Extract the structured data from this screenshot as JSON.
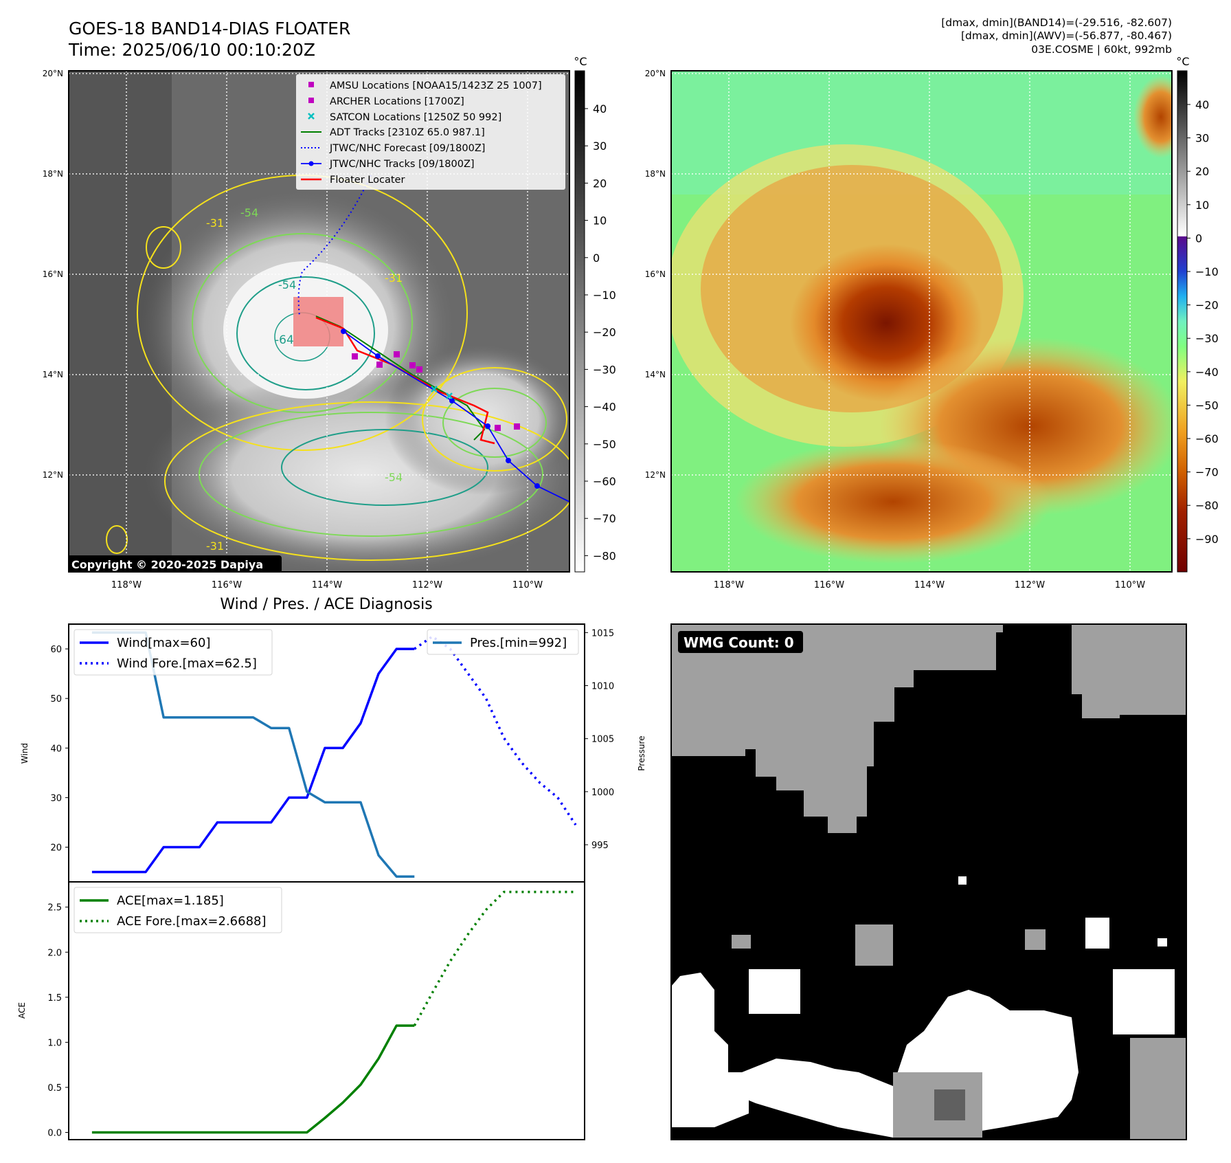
{
  "header": {
    "title_line1": "GOES-18 BAND14-DIAS FLOATER",
    "title_line2": "Time: 2025/06/10 00:10:20Z",
    "info_line1": "[dmax, dmin](BAND14)=(-29.516, -82.607)",
    "info_line2": "[dmax, dmin](AWV)=(-56.877, -80.467)",
    "info_line3": "03E.COSME | 60kt, 992mb"
  },
  "colors": {
    "wind": "#0000ff",
    "pressure": "#1f77b4",
    "ace": "#008000",
    "amsu": "#c000c0",
    "satcon": "#00c0c0",
    "adt": "#008000",
    "floater": "#ff0000",
    "contour_yellow": "#f5e11c",
    "contour_green": "#7ed957",
    "contour_teal": "#1f9e89"
  },
  "maps": {
    "lat_ticks": [
      "20°N",
      "18°N",
      "16°N",
      "14°N",
      "12°N"
    ],
    "lon_ticks": [
      "118°W",
      "116°W",
      "114°W",
      "112°W",
      "110°W"
    ],
    "colorbar_unit": "°C",
    "ir_colorbar_ticks": [
      "40",
      "30",
      "20",
      "10",
      "0",
      "−10",
      "−20",
      "−30",
      "−40",
      "−50",
      "−60",
      "−70",
      "−80"
    ],
    "rgb_colorbar_ticks": [
      "40",
      "30",
      "20",
      "10",
      "0",
      "−10",
      "−20",
      "−30",
      "−40",
      "−50",
      "−60",
      "−70",
      "−80",
      "−90"
    ],
    "contour_labels": [
      "-31",
      "-54",
      "-64",
      "-54",
      "-31",
      "-54",
      "-31"
    ],
    "copyright": "Copyright © 2020-2025 Dapiya",
    "legend": [
      {
        "label": "AMSU Locations [NOAA15/1423Z 25 1007]",
        "icon": "square-marker"
      },
      {
        "label": "ARCHER Locations [1700Z]",
        "icon": "square-marker"
      },
      {
        "label": "SATCON Locations [1250Z 50 992]",
        "icon": "x-marker"
      },
      {
        "label": "ADT Tracks [2310Z 65.0 987.1]",
        "icon": "solid-line"
      },
      {
        "label": "JTWC/NHC Forecast [09/1800Z]",
        "icon": "dotted-line"
      },
      {
        "label": "JTWC/NHC Tracks [09/1800Z]",
        "icon": "line-with-dots"
      },
      {
        "label": "Floater Locater",
        "icon": "solid-line"
      }
    ]
  },
  "wmg": {
    "label": "WMG Count: 0"
  },
  "chart_data": [
    {
      "type": "line",
      "title": "Wind / Pres. / ACE Diagnosis",
      "ylabel": "Wind",
      "y2label": "Pressure",
      "ylim": [
        13,
        65
      ],
      "y2lim": [
        991.5,
        1015.8
      ],
      "xlim": [
        -1.3,
        27.5
      ],
      "yticks": [
        20,
        30,
        40,
        50,
        60
      ],
      "y2ticks": [
        995,
        1000,
        1005,
        1010,
        1015
      ],
      "series": [
        {
          "name": "Wind[max=60]",
          "style": "solid",
          "axis": "left",
          "x": [
            0,
            1,
            2,
            3,
            4,
            5,
            6,
            7,
            8,
            9,
            10,
            11,
            12,
            13,
            14,
            15,
            16,
            17,
            18
          ],
          "values": [
            15,
            15,
            15,
            15,
            20,
            20,
            20,
            25,
            25,
            25,
            25,
            30,
            30,
            40,
            40,
            45,
            55,
            60,
            60
          ]
        },
        {
          "name": "Wind Fore.[max=62.5]",
          "style": "dotted",
          "axis": "left",
          "x": [
            18,
            19,
            20,
            21,
            22,
            23,
            24,
            25,
            26,
            27
          ],
          "values": [
            60,
            62.5,
            60,
            55,
            50,
            42,
            37,
            33,
            30,
            24.5
          ]
        },
        {
          "name": "Pres.[min=992]",
          "style": "solid",
          "axis": "right",
          "x": [
            0,
            1,
            2,
            3,
            4,
            5,
            6,
            7,
            8,
            9,
            10,
            11,
            12,
            13,
            14,
            15,
            16,
            17,
            18
          ],
          "values": [
            1015,
            1015,
            1015,
            1015,
            1007,
            1007,
            1007,
            1007,
            1007,
            1007,
            1006,
            1006,
            1000,
            999,
            999,
            999,
            994,
            992,
            992
          ]
        }
      ]
    },
    {
      "type": "line",
      "ylabel": "ACE",
      "ylim": [
        -0.08,
        2.78
      ],
      "xlim": [
        -1.3,
        27.5
      ],
      "yticks": [
        0.0,
        0.5,
        1.0,
        1.5,
        2.0,
        2.5
      ],
      "series": [
        {
          "name": "ACE[max=1.185]",
          "style": "solid",
          "x": [
            0,
            1,
            2,
            3,
            4,
            5,
            6,
            7,
            8,
            9,
            10,
            11,
            12,
            13,
            14,
            15,
            16,
            17,
            18
          ],
          "values": [
            0,
            0,
            0,
            0,
            0,
            0,
            0,
            0,
            0,
            0,
            0,
            0,
            0,
            0.16,
            0.33,
            0.53,
            0.82,
            1.185,
            1.185
          ]
        },
        {
          "name": "ACE Fore.[max=2.6688]",
          "style": "dotted",
          "x": [
            18,
            19,
            20,
            21,
            22,
            23,
            24,
            25,
            26,
            27
          ],
          "values": [
            1.185,
            1.55,
            1.9,
            2.2,
            2.47,
            2.6688,
            2.6688,
            2.6688,
            2.6688,
            2.6688
          ]
        }
      ]
    }
  ]
}
